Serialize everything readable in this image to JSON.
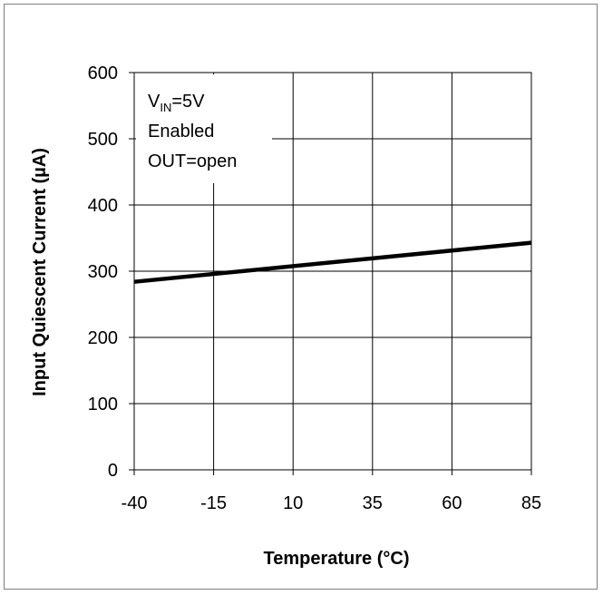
{
  "chart_data": {
    "type": "line",
    "xlabel": "Temperature (°C)",
    "ylabel": "Input Quiescent Current (µA)",
    "xlim": [
      -40,
      85
    ],
    "ylim": [
      0,
      600
    ],
    "x_ticks": [
      "-40",
      "-15",
      "10",
      "35",
      "60",
      "85"
    ],
    "y_ticks": [
      "0",
      "100",
      "200",
      "300",
      "400",
      "500",
      "600"
    ],
    "grid": true,
    "series": [
      {
        "x": [
          -40,
          85
        ],
        "y": [
          284,
          343
        ],
        "color": "#000000"
      }
    ],
    "annotation": {
      "line1_main": "V",
      "line1_sub": "IN",
      "line1_rest": "=5V",
      "line2": "Enabled",
      "line3": "OUT=open"
    }
  }
}
